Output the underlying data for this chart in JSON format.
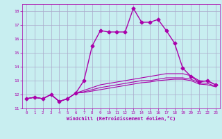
{
  "background_color": "#c8eef0",
  "grid_color": "#aaaacc",
  "line_color": "#aa00aa",
  "xlabel": "Windchill (Refroidissement éolien,°C)",
  "xlim": [
    -0.5,
    23.5
  ],
  "ylim": [
    11,
    18.5
  ],
  "yticks": [
    11,
    12,
    13,
    14,
    15,
    16,
    17,
    18
  ],
  "xticks": [
    0,
    1,
    2,
    3,
    4,
    5,
    6,
    7,
    8,
    9,
    10,
    11,
    12,
    13,
    14,
    15,
    16,
    17,
    18,
    19,
    20,
    21,
    22,
    23
  ],
  "curves": [
    {
      "x": [
        0,
        1,
        2,
        3,
        4,
        5,
        6,
        7,
        8,
        9,
        10,
        11,
        12,
        13,
        14,
        15,
        16,
        17,
        18,
        19,
        20,
        21,
        22,
        23
      ],
      "y": [
        11.7,
        11.8,
        11.7,
        12.0,
        11.5,
        11.7,
        12.1,
        13.0,
        15.5,
        16.6,
        16.5,
        16.5,
        16.5,
        18.2,
        17.2,
        17.2,
        17.4,
        16.6,
        15.7,
        13.9,
        13.3,
        12.9,
        13.0,
        12.7
      ],
      "marker": "D",
      "markersize": 2.5,
      "linewidth": 1.0
    },
    {
      "x": [
        0,
        1,
        2,
        3,
        4,
        5,
        6,
        7,
        8,
        9,
        10,
        11,
        12,
        13,
        14,
        15,
        16,
        17,
        18,
        19,
        20,
        21,
        22,
        23
      ],
      "y": [
        11.7,
        11.8,
        11.7,
        12.0,
        11.5,
        11.7,
        12.1,
        12.3,
        12.5,
        12.7,
        12.8,
        12.9,
        13.0,
        13.1,
        13.2,
        13.3,
        13.4,
        13.5,
        13.5,
        13.5,
        13.35,
        13.0,
        12.95,
        12.7
      ],
      "marker": null,
      "markersize": 0,
      "linewidth": 0.8
    },
    {
      "x": [
        0,
        1,
        2,
        3,
        4,
        5,
        6,
        7,
        8,
        9,
        10,
        11,
        12,
        13,
        14,
        15,
        16,
        17,
        18,
        19,
        20,
        21,
        22,
        23
      ],
      "y": [
        11.7,
        11.8,
        11.7,
        12.0,
        11.5,
        11.7,
        12.1,
        12.2,
        12.35,
        12.5,
        12.6,
        12.7,
        12.8,
        12.9,
        13.0,
        13.0,
        13.1,
        13.2,
        13.2,
        13.2,
        13.1,
        12.85,
        12.8,
        12.6
      ],
      "marker": null,
      "markersize": 0,
      "linewidth": 0.8
    },
    {
      "x": [
        0,
        1,
        2,
        3,
        4,
        5,
        6,
        7,
        8,
        9,
        10,
        11,
        12,
        13,
        14,
        15,
        16,
        17,
        18,
        19,
        20,
        21,
        22,
        23
      ],
      "y": [
        11.7,
        11.8,
        11.7,
        12.0,
        11.5,
        11.7,
        12.1,
        12.15,
        12.25,
        12.35,
        12.45,
        12.55,
        12.65,
        12.75,
        12.85,
        12.9,
        13.0,
        13.05,
        13.1,
        13.1,
        13.0,
        12.75,
        12.7,
        12.55
      ],
      "marker": null,
      "markersize": 0,
      "linewidth": 0.8
    }
  ]
}
